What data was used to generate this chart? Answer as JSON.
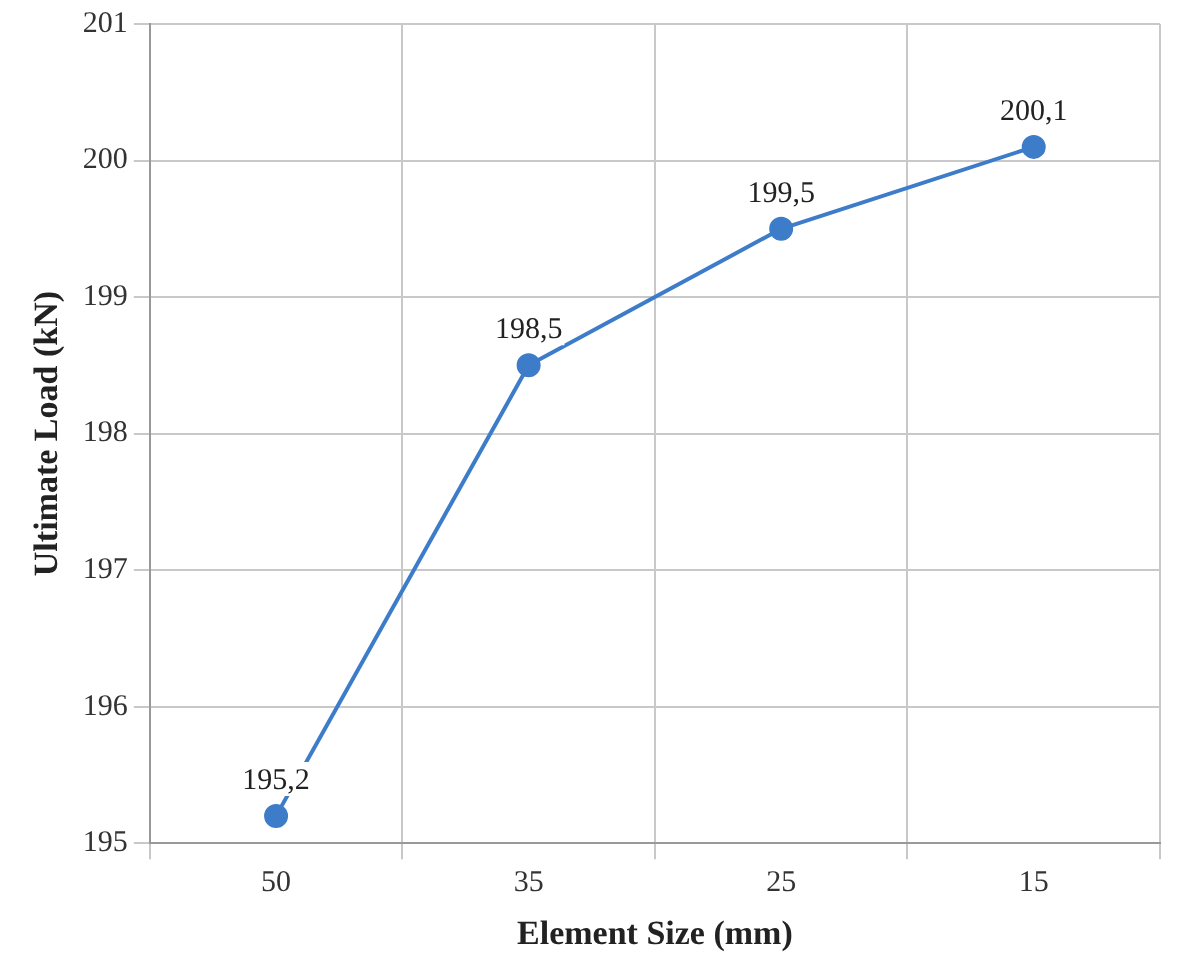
{
  "chart_data": {
    "type": "line",
    "xlabel": "Element Size (mm)",
    "ylabel": "Ultimate Load (kN)",
    "categories": [
      "50",
      "35",
      "25",
      "15"
    ],
    "series": [
      {
        "color": "#3d7cc9",
        "values": [
          195.2,
          198.5,
          199.5,
          200.1
        ],
        "value_labels": [
          "195,2",
          "198,5",
          "199,5",
          "200,1"
        ]
      }
    ],
    "ylim": [
      195,
      201
    ],
    "yticks": [
      195,
      196,
      197,
      198,
      199,
      200,
      201
    ],
    "grid": true,
    "legend": false,
    "marker": "circle",
    "line_style": "solid"
  }
}
